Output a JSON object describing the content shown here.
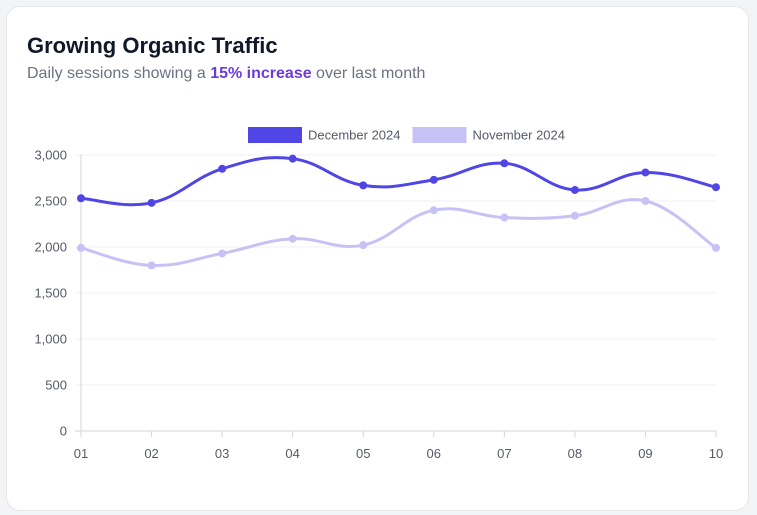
{
  "card": {
    "title": "Growing Organic Traffic",
    "subtitle_prefix": "Daily sessions showing a ",
    "subtitle_highlight": "15% increase",
    "subtitle_suffix": " over last month"
  },
  "chart_data": {
    "type": "line",
    "title": "Growing Organic Traffic",
    "subtitle": "Daily sessions showing a 15% increase over last month",
    "categories": [
      "01",
      "02",
      "03",
      "04",
      "05",
      "06",
      "07",
      "08",
      "09",
      "10"
    ],
    "series": [
      {
        "name": "December 2024",
        "color": "#4f46e5",
        "values": [
          2530,
          2480,
          2850,
          2960,
          2670,
          2730,
          2910,
          2620,
          2810,
          2650
        ]
      },
      {
        "name": "November 2024",
        "color": "#c7c2f5",
        "values": [
          1990,
          1800,
          1930,
          2090,
          2020,
          2400,
          2320,
          2340,
          2500,
          1990
        ]
      }
    ],
    "ylim": [
      0,
      3000
    ],
    "yticks": [
      0,
      500,
      1000,
      1500,
      2000,
      2500,
      3000
    ],
    "ytick_labels": [
      "0",
      "500",
      "1,000",
      "1,500",
      "2,000",
      "2,500",
      "3,000"
    ],
    "xlabel": "",
    "ylabel": "",
    "grid": true,
    "legend": "top-center"
  }
}
